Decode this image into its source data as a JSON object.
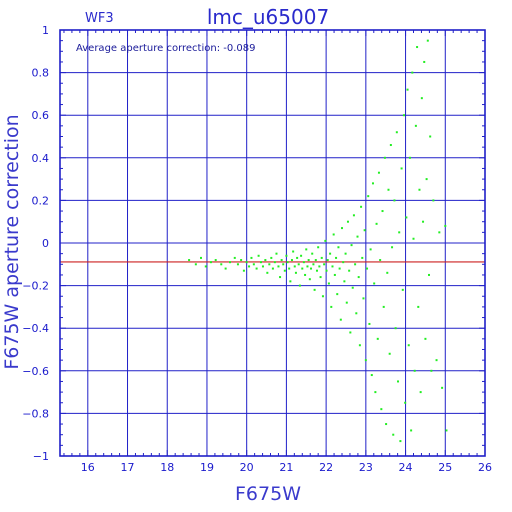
{
  "chart_data": {
    "type": "scatter",
    "title": "lmc_u65007",
    "panel_label": "WF3",
    "annotation": "Average aperture correction: -0.089",
    "average_correction": -0.089,
    "xlabel": "F675W",
    "ylabel": "F675W aperture correction",
    "xlim": [
      15.3,
      26
    ],
    "ylim": [
      -1,
      1
    ],
    "x_ticks": [
      16,
      17,
      18,
      19,
      20,
      21,
      22,
      23,
      24,
      25,
      26
    ],
    "y_ticks": [
      -1,
      -0.8,
      -0.6,
      -0.4,
      -0.2,
      0,
      0.2,
      0.4,
      0.6,
      0.8,
      1
    ],
    "y_tick_labels": [
      "−1",
      "−0.8",
      "−0.6",
      "−0.4",
      "−0.2",
      "0",
      "0.2",
      "0.4",
      "0.6",
      "0.8",
      "1"
    ],
    "grid": true,
    "series": [
      {
        "color": "#22ee22",
        "points": [
          [
            18.55,
            -0.08
          ],
          [
            18.72,
            -0.1
          ],
          [
            18.85,
            -0.07
          ],
          [
            18.97,
            -0.11
          ],
          [
            19.1,
            -0.09
          ],
          [
            19.22,
            -0.08
          ],
          [
            19.36,
            -0.1
          ],
          [
            19.47,
            -0.12
          ],
          [
            19.58,
            -0.09
          ],
          [
            19.7,
            -0.07
          ],
          [
            19.78,
            -0.1
          ],
          [
            19.86,
            -0.08
          ],
          [
            19.93,
            -0.13
          ],
          [
            20.0,
            -0.09
          ],
          [
            20.06,
            -0.11
          ],
          [
            20.12,
            -0.07
          ],
          [
            20.18,
            -0.1
          ],
          [
            20.25,
            -0.12
          ],
          [
            20.3,
            -0.06
          ],
          [
            20.36,
            -0.09
          ],
          [
            20.41,
            -0.11
          ],
          [
            20.47,
            -0.08
          ],
          [
            20.52,
            -0.14
          ],
          [
            20.57,
            -0.1
          ],
          [
            20.62,
            -0.07
          ],
          [
            20.66,
            -0.12
          ],
          [
            20.71,
            -0.09
          ],
          [
            20.75,
            -0.05
          ],
          [
            20.8,
            -0.11
          ],
          [
            20.84,
            -0.16
          ],
          [
            20.88,
            -0.08
          ],
          [
            20.92,
            -0.1
          ],
          [
            20.96,
            -0.13
          ],
          [
            21.0,
            -0.06
          ],
          [
            21.03,
            -0.09
          ],
          [
            21.07,
            -0.12
          ],
          [
            21.1,
            -0.18
          ],
          [
            21.14,
            -0.08
          ],
          [
            21.17,
            -0.04
          ],
          [
            21.21,
            -0.11
          ],
          [
            21.24,
            -0.14
          ],
          [
            21.27,
            -0.07
          ],
          [
            21.31,
            -0.1
          ],
          [
            21.34,
            -0.2
          ],
          [
            21.37,
            -0.06
          ],
          [
            21.4,
            -0.12
          ],
          [
            21.44,
            -0.09
          ],
          [
            21.47,
            -0.15
          ],
          [
            21.5,
            -0.03
          ],
          [
            21.53,
            -0.11
          ],
          [
            21.56,
            -0.08
          ],
          [
            21.59,
            -0.17
          ],
          [
            21.62,
            -0.12
          ],
          [
            21.65,
            -0.05
          ],
          [
            21.68,
            -0.1
          ],
          [
            21.71,
            -0.22
          ],
          [
            21.74,
            -0.08
          ],
          [
            21.77,
            -0.13
          ],
          [
            21.8,
            -0.02
          ],
          [
            21.83,
            -0.11
          ],
          [
            21.86,
            -0.16
          ],
          [
            21.89,
            -0.07
          ],
          [
            21.92,
            -0.25
          ],
          [
            21.95,
            -0.1
          ],
          [
            21.98,
            0.01
          ],
          [
            22.01,
            -0.13
          ],
          [
            22.04,
            -0.08
          ],
          [
            22.07,
            -0.19
          ],
          [
            22.1,
            -0.05
          ],
          [
            22.13,
            -0.3
          ],
          [
            22.16,
            -0.11
          ],
          [
            22.19,
            0.04
          ],
          [
            22.22,
            -0.15
          ],
          [
            22.25,
            -0.07
          ],
          [
            22.28,
            -0.24
          ],
          [
            22.31,
            -0.02
          ],
          [
            22.34,
            -0.12
          ],
          [
            22.37,
            -0.36
          ],
          [
            22.4,
            0.07
          ],
          [
            22.43,
            -0.09
          ],
          [
            22.46,
            -0.18
          ],
          [
            22.49,
            -0.05
          ],
          [
            22.52,
            -0.28
          ],
          [
            22.55,
            0.1
          ],
          [
            22.58,
            -0.13
          ],
          [
            22.61,
            -0.42
          ],
          [
            22.64,
            -0.01
          ],
          [
            22.67,
            -0.21
          ],
          [
            22.7,
            0.13
          ],
          [
            22.73,
            -0.1
          ],
          [
            22.76,
            -0.33
          ],
          [
            22.79,
            0.03
          ],
          [
            22.82,
            -0.16
          ],
          [
            22.85,
            -0.48
          ],
          [
            22.88,
            0.17
          ],
          [
            22.91,
            -0.07
          ],
          [
            22.94,
            -0.26
          ],
          [
            22.97,
            0.06
          ],
          [
            23.0,
            -0.55
          ],
          [
            23.03,
            -0.12
          ],
          [
            23.06,
            0.22
          ],
          [
            23.09,
            -0.38
          ],
          [
            23.12,
            -0.03
          ],
          [
            23.15,
            -0.62
          ],
          [
            23.18,
            0.28
          ],
          [
            23.21,
            -0.19
          ],
          [
            23.24,
            -0.7
          ],
          [
            23.27,
            0.09
          ],
          [
            23.3,
            -0.45
          ],
          [
            23.33,
            0.33
          ],
          [
            23.36,
            -0.08
          ],
          [
            23.39,
            -0.78
          ],
          [
            23.42,
            0.15
          ],
          [
            23.45,
            -0.3
          ],
          [
            23.48,
            0.4
          ],
          [
            23.51,
            -0.85
          ],
          [
            23.54,
            -0.14
          ],
          [
            23.57,
            0.25
          ],
          [
            23.6,
            -0.52
          ],
          [
            23.63,
            0.46
          ],
          [
            23.66,
            -0.02
          ],
          [
            23.69,
            -0.9
          ],
          [
            23.72,
            0.2
          ],
          [
            23.75,
            -0.4
          ],
          [
            23.78,
            0.52
          ],
          [
            23.81,
            -0.65
          ],
          [
            23.84,
            0.05
          ],
          [
            23.87,
            -0.93
          ],
          [
            23.9,
            0.35
          ],
          [
            23.93,
            -0.22
          ],
          [
            23.96,
            0.6
          ],
          [
            23.99,
            -0.75
          ],
          [
            24.02,
            0.12
          ],
          [
            24.05,
            0.72
          ],
          [
            24.08,
            -0.48
          ],
          [
            24.11,
            0.4
          ],
          [
            24.14,
            -0.88
          ],
          [
            24.17,
            0.8
          ],
          [
            24.2,
            0.02
          ],
          [
            24.23,
            -0.6
          ],
          [
            24.26,
            0.55
          ],
          [
            24.29,
            0.92
          ],
          [
            24.32,
            -0.3
          ],
          [
            24.35,
            0.25
          ],
          [
            24.38,
            -0.7
          ],
          [
            24.41,
            0.68
          ],
          [
            24.44,
            0.1
          ],
          [
            24.47,
            0.85
          ],
          [
            24.5,
            -0.45
          ],
          [
            24.53,
            0.3
          ],
          [
            24.56,
            0.95
          ],
          [
            24.59,
            -0.15
          ],
          [
            24.62,
            0.5
          ],
          [
            24.65,
            -0.6
          ],
          [
            24.7,
            0.2
          ],
          [
            24.78,
            -0.55
          ],
          [
            24.85,
            0.05
          ],
          [
            24.92,
            -0.68
          ],
          [
            25.0,
            0.08
          ],
          [
            25.03,
            -0.88
          ]
        ]
      }
    ],
    "reference_line": {
      "y": -0.089,
      "color": "#cc2222"
    },
    "colors": {
      "axes": "#2020c8",
      "grid": "#2020c8",
      "points": "#22ee22",
      "reference": "#cc2222"
    }
  }
}
